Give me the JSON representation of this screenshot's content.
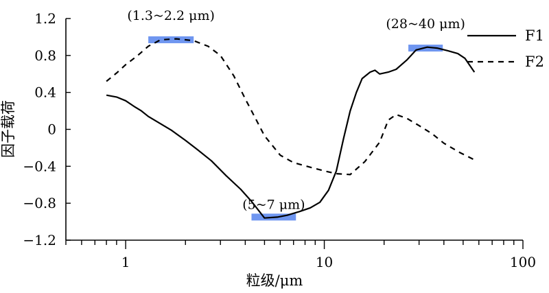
{
  "chart_data": {
    "type": "line",
    "xlabel": "粒级/μm",
    "ylabel": "因子载荷",
    "xscale": "log",
    "xlim": [
      0.5,
      100
    ],
    "ylim": [
      -1.2,
      1.2
    ],
    "xticks": [
      1,
      10,
      100
    ],
    "xtick_labels": [
      "1",
      "10",
      "100"
    ],
    "yticks": [
      1.2,
      0.8,
      0.4,
      0,
      -0.4,
      -0.8,
      -1.2
    ],
    "ytick_labels": [
      "1.2",
      "0.8",
      "0.4",
      "0",
      "−0.4",
      "−0.8",
      "−1.2"
    ],
    "legend": "top-right",
    "grid": false,
    "highlight_color": "#6f96f0",
    "series": [
      {
        "name": "F1",
        "style": "solid",
        "points": [
          [
            0.8,
            0.37
          ],
          [
            0.9,
            0.35
          ],
          [
            1.0,
            0.31
          ],
          [
            1.1,
            0.25
          ],
          [
            1.2,
            0.2
          ],
          [
            1.3,
            0.14
          ],
          [
            1.5,
            0.06
          ],
          [
            1.7,
            -0.01
          ],
          [
            2.0,
            -0.12
          ],
          [
            2.3,
            -0.22
          ],
          [
            2.7,
            -0.34
          ],
          [
            3.2,
            -0.5
          ],
          [
            3.8,
            -0.65
          ],
          [
            4.3,
            -0.78
          ],
          [
            5.0,
            -0.96
          ],
          [
            5.8,
            -0.95
          ],
          [
            6.5,
            -0.93
          ],
          [
            7.5,
            -0.89
          ],
          [
            8.5,
            -0.85
          ],
          [
            9.5,
            -0.79
          ],
          [
            10.5,
            -0.66
          ],
          [
            11.5,
            -0.45
          ],
          [
            12.5,
            -0.1
          ],
          [
            13.5,
            0.2
          ],
          [
            14.5,
            0.4
          ],
          [
            15.5,
            0.55
          ],
          [
            17.0,
            0.62
          ],
          [
            18.0,
            0.64
          ],
          [
            19.0,
            0.6
          ],
          [
            21.0,
            0.62
          ],
          [
            23.0,
            0.65
          ],
          [
            26.0,
            0.75
          ],
          [
            29.0,
            0.86
          ],
          [
            33.0,
            0.89
          ],
          [
            37.0,
            0.88
          ],
          [
            42.0,
            0.85
          ],
          [
            47.0,
            0.82
          ],
          [
            51.0,
            0.77
          ],
          [
            57.0,
            0.62
          ]
        ]
      },
      {
        "name": "F2",
        "style": "dashed",
        "points": [
          [
            0.8,
            0.52
          ],
          [
            0.9,
            0.61
          ],
          [
            1.0,
            0.7
          ],
          [
            1.15,
            0.8
          ],
          [
            1.3,
            0.9
          ],
          [
            1.5,
            0.97
          ],
          [
            1.8,
            0.98
          ],
          [
            2.2,
            0.96
          ],
          [
            2.6,
            0.9
          ],
          [
            3.0,
            0.8
          ],
          [
            3.5,
            0.58
          ],
          [
            4.0,
            0.33
          ],
          [
            4.5,
            0.12
          ],
          [
            5.0,
            -0.07
          ],
          [
            6.0,
            -0.28
          ],
          [
            7.0,
            -0.36
          ],
          [
            8.5,
            -0.41
          ],
          [
            10.0,
            -0.45
          ],
          [
            11.5,
            -0.48
          ],
          [
            13.5,
            -0.49
          ],
          [
            16.0,
            -0.35
          ],
          [
            19.0,
            -0.14
          ],
          [
            21.0,
            0.1
          ],
          [
            23.0,
            0.16
          ],
          [
            26.0,
            0.12
          ],
          [
            30.0,
            0.04
          ],
          [
            35.0,
            -0.05
          ],
          [
            40.0,
            -0.15
          ],
          [
            48.0,
            -0.25
          ],
          [
            57.0,
            -0.33
          ]
        ]
      }
    ],
    "annotations": [
      {
        "label": "(1.3~2.2 μm)",
        "x_range": [
          1.3,
          2.2
        ],
        "y": 0.97
      },
      {
        "label": "(5~7 μm)",
        "x_range": [
          4.3,
          7.2
        ],
        "y": -0.95
      },
      {
        "label": "(28~40 μm)",
        "x_range": [
          26.5,
          39.5
        ],
        "y": 0.88
      }
    ]
  }
}
